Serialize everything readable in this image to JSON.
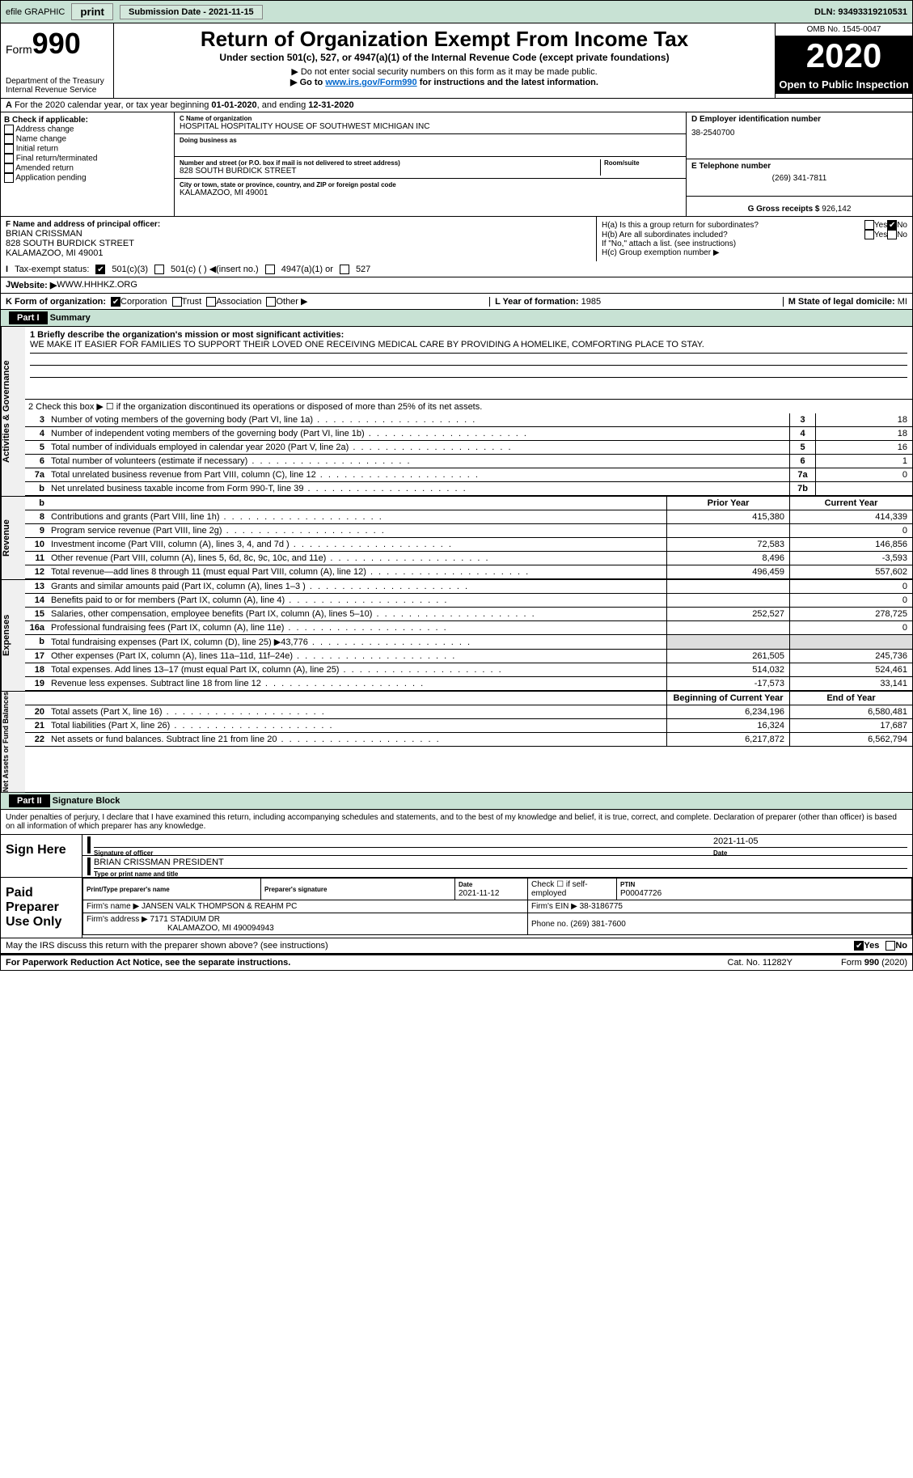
{
  "topbar": {
    "efile": "efile GRAPHIC",
    "print": "print",
    "subdate_lbl": "Submission Date - ",
    "subdate": "2021-11-15",
    "dln_lbl": "DLN: ",
    "dln": "93493319210531"
  },
  "header": {
    "form_lbl": "Form",
    "form_no": "990",
    "dept": "Department of the Treasury",
    "irs": "Internal Revenue Service",
    "title": "Return of Organization Exempt From Income Tax",
    "sub1": "Under section 501(c), 527, or 4947(a)(1) of the Internal Revenue Code (except private foundations)",
    "sub2": "Do not enter social security numbers on this form as it may be made public.",
    "sub3_a": "Go to ",
    "sub3_link": "www.irs.gov/Form990",
    "sub3_b": " for instructions and the latest information.",
    "omb": "OMB No. 1545-0047",
    "year": "2020",
    "otp": "Open to Public Inspection"
  },
  "rowA": {
    "text_a": "For the 2020 calendar year, or tax year beginning ",
    "begin": "01-01-2020",
    "text_b": ", and ending ",
    "end": "12-31-2020",
    "pfx": "A"
  },
  "colB": {
    "hdr": "B Check if applicable:",
    "opts": [
      "Address change",
      "Name change",
      "Initial return",
      "Final return/terminated",
      "Amended return",
      "Application pending"
    ]
  },
  "colC": {
    "name_lbl": "C Name of organization",
    "name": "HOSPITAL HOSPITALITY HOUSE OF SOUTHWEST MICHIGAN INC",
    "dba_lbl": "Doing business as",
    "addr_lbl": "Number and street (or P.O. box if mail is not delivered to street address)",
    "room_lbl": "Room/suite",
    "addr": "828 SOUTH BURDICK STREET",
    "city_lbl": "City or town, state or province, country, and ZIP or foreign postal code",
    "city": "KALAMAZOO, MI  49001"
  },
  "colD": {
    "ein_lbl": "D Employer identification number",
    "ein": "38-2540700",
    "tel_lbl": "E Telephone number",
    "tel": "(269) 341-7811",
    "gross_lbl": "G Gross receipts $ ",
    "gross": "926,142"
  },
  "rowF": {
    "lbl": "F Name and address of principal officer:",
    "name": "BRIAN CRISSMAN",
    "addr1": "828 SOUTH BURDICK STREET",
    "addr2": "KALAMAZOO, MI  49001"
  },
  "rowH": {
    "ha": "H(a)  Is this a group return for subordinates?",
    "hb": "H(b)  Are all subordinates included?",
    "hb_note": "If \"No,\" attach a list. (see instructions)",
    "hc": "H(c)  Group exemption number ▶",
    "yes": "Yes",
    "no": "No"
  },
  "rowI": {
    "lbl": "Tax-exempt status:",
    "o1": "501(c)(3)",
    "o2": "501(c) (   ) ◀(insert no.)",
    "o3": "4947(a)(1) or",
    "o4": "527"
  },
  "rowJ": {
    "lbl": "Website: ▶",
    "val": "WWW.HHHKZ.ORG"
  },
  "rowK": {
    "lbl": "K Form of organization:",
    "opts": [
      "Corporation",
      "Trust",
      "Association",
      "Other ▶"
    ],
    "L": "L Year of formation: ",
    "Lv": "1985",
    "M": "M State of legal domicile: ",
    "Mv": "MI"
  },
  "part1": {
    "hdr": "Part I",
    "title": "Summary"
  },
  "summary": {
    "side1": "Activities & Governance",
    "l1_lbl": "1   Briefly describe the organization's mission or most significant activities:",
    "l1_txt": "WE MAKE IT EASIER FOR FAMILIES TO SUPPORT THEIR LOVED ONE RECEIVING MEDICAL CARE BY PROVIDING A HOMELIKE, COMFORTING PLACE TO STAY.",
    "l2": "2   Check this box ▶ ☐  if the organization discontinued its operations or disposed of more than 25% of its net assets.",
    "lines_gov": [
      {
        "n": "3",
        "t": "Number of voting members of the governing body (Part VI, line 1a)",
        "k": "3",
        "v": "18"
      },
      {
        "n": "4",
        "t": "Number of independent voting members of the governing body (Part VI, line 1b)",
        "k": "4",
        "v": "18"
      },
      {
        "n": "5",
        "t": "Total number of individuals employed in calendar year 2020 (Part V, line 2a)",
        "k": "5",
        "v": "16"
      },
      {
        "n": "6",
        "t": "Total number of volunteers (estimate if necessary)",
        "k": "6",
        "v": "1"
      },
      {
        "n": "7a",
        "t": "Total unrelated business revenue from Part VIII, column (C), line 12",
        "k": "7a",
        "v": "0"
      },
      {
        "n": "b",
        "t": "Net unrelated business taxable income from Form 990-T, line 39",
        "k": "7b",
        "v": ""
      }
    ],
    "hdr_prior": "Prior Year",
    "hdr_curr": "Current Year",
    "side2": "Revenue",
    "rev": [
      {
        "n": "8",
        "t": "Contributions and grants (Part VIII, line 1h)",
        "p": "415,380",
        "c": "414,339"
      },
      {
        "n": "9",
        "t": "Program service revenue (Part VIII, line 2g)",
        "p": "",
        "c": "0"
      },
      {
        "n": "10",
        "t": "Investment income (Part VIII, column (A), lines 3, 4, and 7d )",
        "p": "72,583",
        "c": "146,856"
      },
      {
        "n": "11",
        "t": "Other revenue (Part VIII, column (A), lines 5, 6d, 8c, 9c, 10c, and 11e)",
        "p": "8,496",
        "c": "-3,593"
      },
      {
        "n": "12",
        "t": "Total revenue—add lines 8 through 11 (must equal Part VIII, column (A), line 12)",
        "p": "496,459",
        "c": "557,602"
      }
    ],
    "side3": "Expenses",
    "exp": [
      {
        "n": "13",
        "t": "Grants and similar amounts paid (Part IX, column (A), lines 1–3 )",
        "p": "",
        "c": "0"
      },
      {
        "n": "14",
        "t": "Benefits paid to or for members (Part IX, column (A), line 4)",
        "p": "",
        "c": "0"
      },
      {
        "n": "15",
        "t": "Salaries, other compensation, employee benefits (Part IX, column (A), lines 5–10)",
        "p": "252,527",
        "c": "278,725"
      },
      {
        "n": "16a",
        "t": "Professional fundraising fees (Part IX, column (A), line 11e)",
        "p": "",
        "c": "0"
      },
      {
        "n": "b",
        "t": "Total fundraising expenses (Part IX, column (D), line 25) ▶43,776",
        "p": "gray",
        "c": "gray"
      },
      {
        "n": "17",
        "t": "Other expenses (Part IX, column (A), lines 11a–11d, 11f–24e)",
        "p": "261,505",
        "c": "245,736"
      },
      {
        "n": "18",
        "t": "Total expenses. Add lines 13–17 (must equal Part IX, column (A), line 25)",
        "p": "514,032",
        "c": "524,461"
      },
      {
        "n": "19",
        "t": "Revenue less expenses. Subtract line 18 from line 12",
        "p": "-17,573",
        "c": "33,141"
      }
    ],
    "side4": "Net Assets or Fund Balances",
    "hdr_beg": "Beginning of Current Year",
    "hdr_end": "End of Year",
    "net": [
      {
        "n": "20",
        "t": "Total assets (Part X, line 16)",
        "p": "6,234,196",
        "c": "6,580,481"
      },
      {
        "n": "21",
        "t": "Total liabilities (Part X, line 26)",
        "p": "16,324",
        "c": "17,687"
      },
      {
        "n": "22",
        "t": "Net assets or fund balances. Subtract line 21 from line 20",
        "p": "6,217,872",
        "c": "6,562,794"
      }
    ]
  },
  "part2": {
    "hdr": "Part II",
    "title": "Signature Block"
  },
  "sig": {
    "decl": "Under penalties of perjury, I declare that I have examined this return, including accompanying schedules and statements, and to the best of my knowledge and belief, it is true, correct, and complete. Declaration of preparer (other than officer) is based on all information of which preparer has any knowledge.",
    "sign_here": "Sign Here",
    "sig_of": "Signature of officer",
    "date_lbl": "Date",
    "sig_date": "2021-11-05",
    "officer": "BRIAN CRISSMAN  PRESIDENT",
    "type_name": "Type or print name and title",
    "paid": "Paid Preparer Use Only",
    "pt_name": "Print/Type preparer's name",
    "pt_sig": "Preparer's signature",
    "pt_date_lbl": "Date",
    "pt_date": "2021-11-12",
    "self_emp": "Check ☐ if self-employed",
    "ptin_lbl": "PTIN",
    "ptin": "P00047726",
    "firm_name_lbl": "Firm's name ▶",
    "firm_name": "JANSEN VALK THOMPSON & REAHM PC",
    "firm_ein_lbl": "Firm's EIN ▶",
    "firm_ein": "38-3186775",
    "firm_addr_lbl": "Firm's address ▶",
    "firm_addr": "7171 STADIUM DR",
    "firm_city": "KALAMAZOO, MI  490094943",
    "phone_lbl": "Phone no. ",
    "phone": "(269) 381-7600"
  },
  "footer": {
    "q": "May the IRS discuss this return with the preparer shown above? (see instructions)",
    "yes": "Yes",
    "no": "No",
    "pra": "For Paperwork Reduction Act Notice, see the separate instructions.",
    "cat": "Cat. No. 11282Y",
    "form": "Form 990 (2020)"
  },
  "colors": {
    "header_bg": "#c8e2d4",
    "link": "#0066cc"
  }
}
